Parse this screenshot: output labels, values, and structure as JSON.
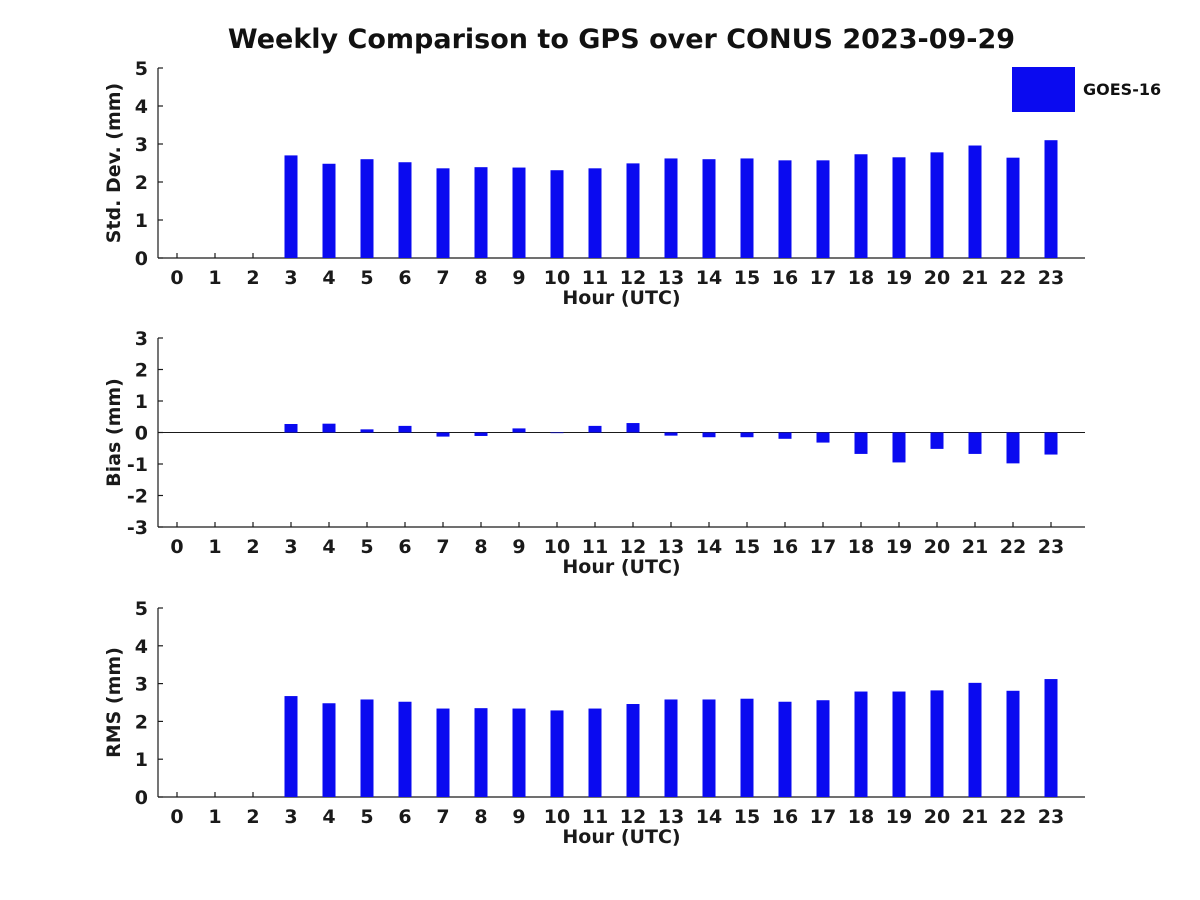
{
  "page": {
    "title": "Weekly Comparison to GPS over CONUS 2023-09-29"
  },
  "legend": {
    "label": "GOES-16",
    "color": "#0a0af0"
  },
  "colors": {
    "bar": "#0a0af0",
    "axis": "#1a1a1a",
    "text": "#111111",
    "background": "#ffffff"
  },
  "chart_data": [
    {
      "id": "stddev",
      "type": "bar",
      "title": "",
      "series_name": "GOES-16",
      "ylabel": "Std. Dev. (mm)",
      "xlabel": "Hour (UTC)",
      "ylim": [
        0,
        5
      ],
      "yticks": [
        0,
        1,
        2,
        3,
        4,
        5
      ],
      "grid": false,
      "legend_position": "upper-right-outside",
      "categories": [
        0,
        1,
        2,
        3,
        4,
        5,
        6,
        7,
        8,
        9,
        10,
        11,
        12,
        13,
        14,
        15,
        16,
        17,
        18,
        19,
        20,
        21,
        22,
        23
      ],
      "values": [
        null,
        null,
        null,
        2.7,
        2.48,
        2.6,
        2.52,
        2.36,
        2.39,
        2.38,
        2.31,
        2.36,
        2.49,
        2.62,
        2.6,
        2.62,
        2.57,
        2.57,
        2.73,
        2.65,
        2.78,
        2.96,
        2.64,
        3.1
      ]
    },
    {
      "id": "bias",
      "type": "bar",
      "title": "",
      "series_name": "GOES-16",
      "ylabel": "Bias (mm)",
      "xlabel": "Hour (UTC)",
      "ylim": [
        -3,
        3
      ],
      "yticks": [
        -3,
        -2,
        -1,
        0,
        1,
        2,
        3
      ],
      "grid": false,
      "zero_line": true,
      "categories": [
        0,
        1,
        2,
        3,
        4,
        5,
        6,
        7,
        8,
        9,
        10,
        11,
        12,
        13,
        14,
        15,
        16,
        17,
        18,
        19,
        20,
        21,
        22,
        23
      ],
      "values": [
        null,
        null,
        null,
        0.27,
        0.28,
        0.1,
        0.21,
        -0.13,
        -0.11,
        0.13,
        -0.02,
        0.21,
        0.3,
        -0.1,
        -0.15,
        -0.15,
        -0.2,
        -0.32,
        -0.68,
        -0.95,
        -0.52,
        -0.68,
        -0.98,
        -0.7
      ]
    },
    {
      "id": "rms",
      "type": "bar",
      "title": "",
      "series_name": "GOES-16",
      "ylabel": "RMS (mm)",
      "xlabel": "Hour (UTC)",
      "ylim": [
        0,
        5
      ],
      "yticks": [
        0,
        1,
        2,
        3,
        4,
        5
      ],
      "grid": false,
      "categories": [
        0,
        1,
        2,
        3,
        4,
        5,
        6,
        7,
        8,
        9,
        10,
        11,
        12,
        13,
        14,
        15,
        16,
        17,
        18,
        19,
        20,
        21,
        22,
        23
      ],
      "values": [
        null,
        null,
        null,
        2.67,
        2.48,
        2.58,
        2.52,
        2.34,
        2.35,
        2.34,
        2.29,
        2.34,
        2.46,
        2.58,
        2.58,
        2.6,
        2.52,
        2.56,
        2.79,
        2.79,
        2.82,
        3.02,
        2.81,
        3.12
      ]
    }
  ]
}
